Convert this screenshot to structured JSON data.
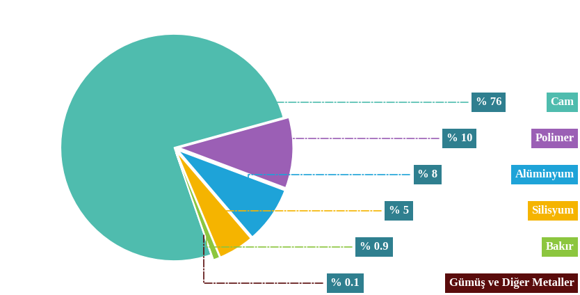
{
  "chart_data": {
    "type": "pie",
    "categories": [
      "Cam",
      "Polimer",
      "Alüminyum",
      "Silisyum",
      "Bakır",
      "Gümüş ve Diğer Metaller"
    ],
    "values": [
      76,
      10,
      8,
      5,
      0.9,
      0.1
    ],
    "value_labels": [
      "% 76",
      "% 10",
      "% 8",
      "% 5",
      "% 0.9",
      "% 0.1"
    ],
    "colors": [
      "#4fbcae",
      "#9b5fb5",
      "#1ea3d8",
      "#f5b400",
      "#8cc63f",
      "#5a0c0c"
    ],
    "data_labels": true
  }
}
